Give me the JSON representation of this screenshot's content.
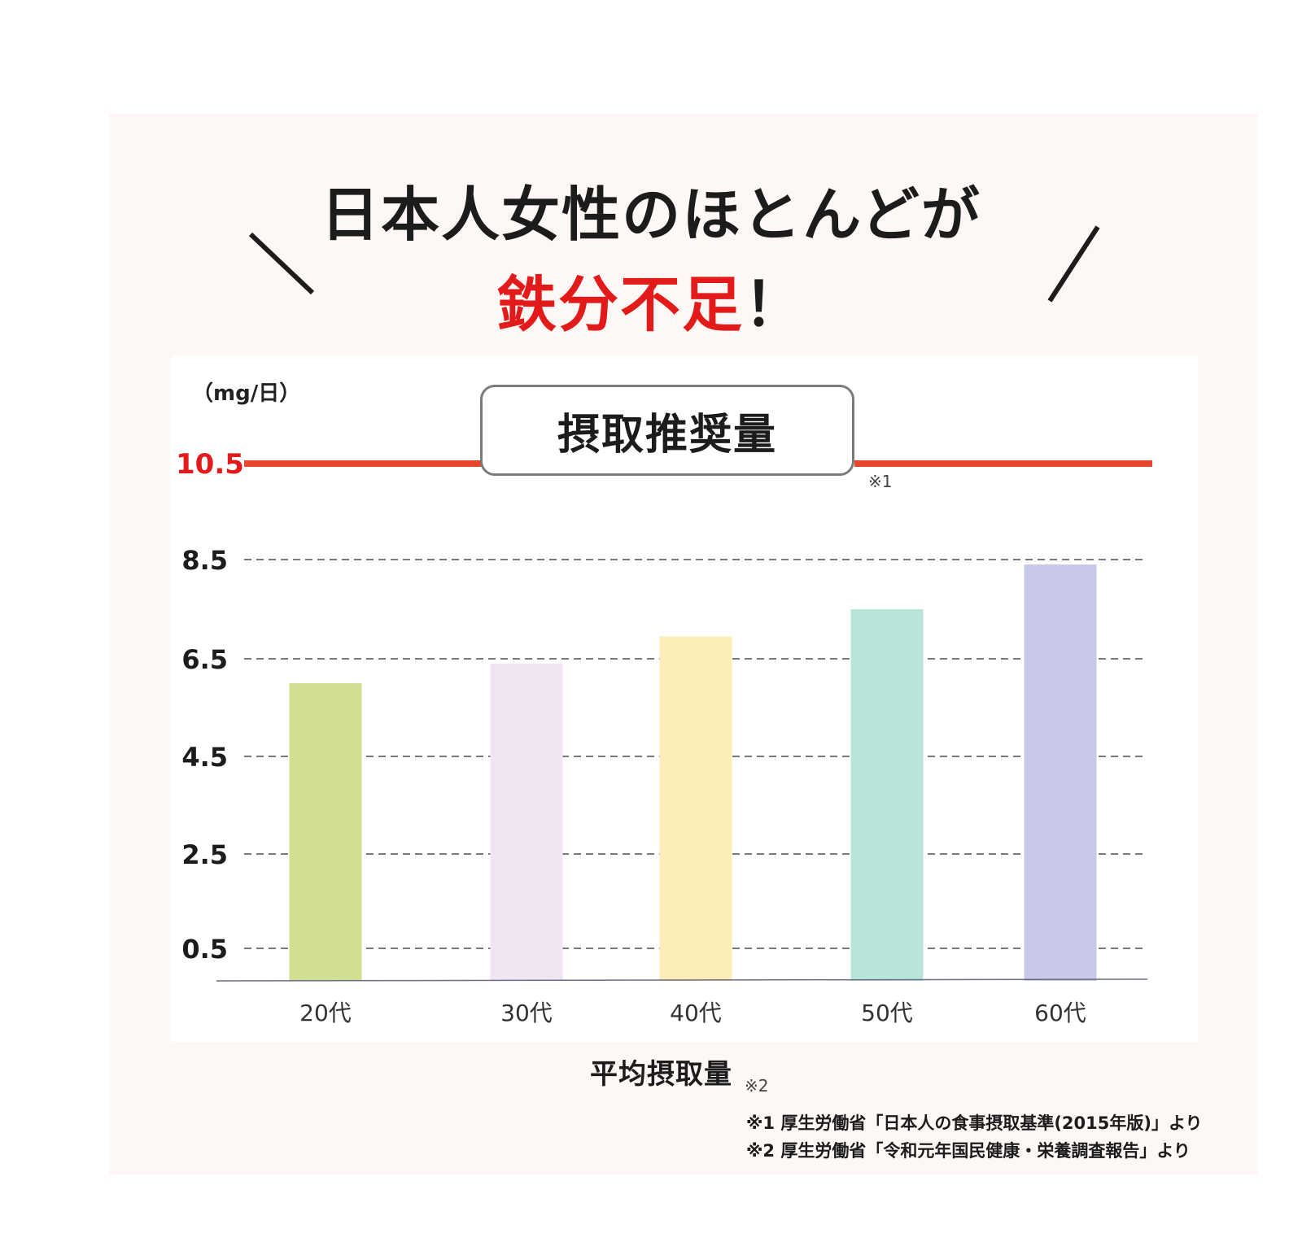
{
  "header": {
    "title_line1": "日本人女性のほとんどが",
    "title_line2_highlight": "鉄分不足",
    "title_line2_suffix": "！",
    "highlight_color": "#e21a1a"
  },
  "chart_data": {
    "type": "bar",
    "unit_label": "（mg/日）",
    "categories": [
      "20代",
      "30代",
      "40代",
      "50代",
      "60代"
    ],
    "values": [
      6.0,
      6.4,
      6.95,
      7.5,
      8.4
    ],
    "bar_colors": [
      "#d1df93",
      "#f1e5f3",
      "#fbedb7",
      "#b8e5d9",
      "#c8c9e8"
    ],
    "yticks": [
      "0.5",
      "2.5",
      "4.5",
      "6.5",
      "8.5"
    ],
    "ytick_values": [
      0.5,
      2.5,
      4.5,
      6.5,
      8.5
    ],
    "reference": {
      "value": 10.5,
      "value_label": "10.5",
      "label": "摂取推奨量",
      "note": "※1",
      "color": "#e8472c"
    },
    "xcaption": "平均摂取量",
    "xcaption_note": "※2",
    "grid": "dashed-horizontal"
  },
  "sources": [
    "※1 厚生労働省「日本人の食事摂取基準(2015年版)」より",
    "※2 厚生労働省「令和元年国民健康・栄養調査報告」より"
  ]
}
